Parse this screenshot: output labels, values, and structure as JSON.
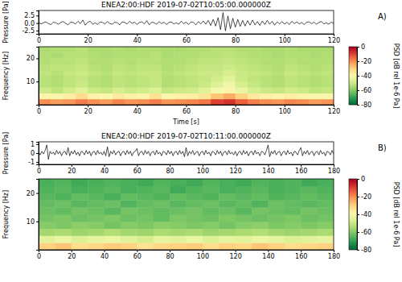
{
  "chart_data": [
    {
      "type": "line",
      "title": "ENEA2:00:HDF 2019-07-02T10:05:00.000000Z",
      "annotation": "A)",
      "y_label": "Pressure [Pa]",
      "color": "#000000",
      "grid": false,
      "x": [
        0,
        1,
        2,
        3,
        4,
        5,
        6,
        7,
        8,
        9,
        10,
        11,
        12,
        13,
        14,
        15,
        16,
        17,
        18,
        19,
        20,
        21,
        22,
        23,
        24,
        25,
        26,
        27,
        28,
        29,
        30,
        31,
        32,
        33,
        34,
        35,
        36,
        37,
        38,
        39,
        40,
        41,
        42,
        43,
        44,
        45,
        46,
        47,
        48,
        49,
        50,
        51,
        52,
        53,
        54,
        55,
        56,
        57,
        58,
        59,
        60,
        61,
        62,
        63,
        64,
        65,
        66,
        67,
        68,
        69,
        70,
        71,
        72,
        73,
        74,
        75,
        76,
        77,
        78,
        79,
        80,
        81,
        82,
        83,
        84,
        85,
        86,
        87,
        88,
        89,
        90,
        91,
        92,
        93,
        94,
        95,
        96,
        97,
        98,
        99,
        100,
        101,
        102,
        103,
        104,
        105,
        106,
        107,
        108,
        109,
        110,
        111,
        112,
        113,
        114,
        115,
        116,
        117,
        118,
        119,
        120
      ],
      "values": [
        0.2,
        -0.3,
        0.1,
        0.4,
        -0.2,
        -0.5,
        0.3,
        0.1,
        -0.4,
        0.2,
        0.5,
        -0.1,
        -0.6,
        0.3,
        0.2,
        -0.3,
        0.6,
        -0.2,
        1.0,
        -0.7,
        0.3,
        0.6,
        -0.4,
        0.1,
        -0.5,
        0.4,
        0.2,
        -0.3,
        0.5,
        -0.2,
        -0.4,
        0.3,
        0.1,
        -0.6,
        0.4,
        0.2,
        -0.3,
        0.6,
        -0.1,
        0.3,
        -0.5,
        0.2,
        0.4,
        -0.3,
        0.8,
        -0.6,
        0.3,
        0.1,
        -0.4,
        0.5,
        -0.2,
        0.3,
        -0.5,
        0.2,
        0.4,
        -0.3,
        0.1,
        -0.4,
        0.6,
        -0.2,
        0.3,
        -0.5,
        0.4,
        0.2,
        -0.6,
        0.5,
        -0.3,
        0.7,
        -0.4,
        0.9,
        -0.8,
        1.2,
        -1.0,
        1.8,
        -2.2,
        3.5,
        -2.6,
        2.4,
        -1.9,
        1.6,
        -1.4,
        1.2,
        -1.1,
        0.9,
        -1.0,
        0.8,
        -0.7,
        1.0,
        -0.6,
        0.5,
        -0.8,
        0.7,
        -0.5,
        0.9,
        -0.4,
        0.6,
        -0.7,
        0.4,
        -0.3,
        0.5,
        -0.4,
        0.3,
        -0.5,
        0.6,
        -0.2,
        0.4,
        -0.3,
        0.2,
        -0.5,
        0.3,
        0.4,
        -0.2,
        0.3,
        -0.4,
        0.2,
        0.5,
        -0.3,
        0.1,
        -0.4,
        0.3,
        -0.1
      ],
      "xlim": [
        0,
        120
      ],
      "xticks": [
        0,
        20,
        40,
        60,
        80,
        100,
        120
      ],
      "ylim": [
        -3.6,
        4.2
      ],
      "yticks": [
        -2.5,
        {
          "value": 0,
          "label": "0.0"
        },
        2.5
      ]
    },
    {
      "type": "heatmap",
      "y_label": "Frequency [Hz]",
      "x_label": "Time [s]",
      "z_label": "PSD [dB rel 1e-6 Pa]",
      "grid": false,
      "x": [
        2.5,
        7.5,
        12.5,
        17.5,
        22.5,
        27.5,
        32.5,
        37.5,
        42.5,
        47.5,
        52.5,
        57.5,
        62.5,
        67.5,
        72.5,
        77.5,
        82.5,
        87.5,
        92.5,
        97.5,
        102.5,
        107.5,
        112.5,
        117.5
      ],
      "y": [
        1.25,
        3.75,
        6.25,
        8.75,
        11.25,
        13.75,
        16.25,
        18.75,
        21.25,
        23.75
      ],
      "values": [
        [
          -20,
          -22,
          -21,
          -18,
          -20,
          -22,
          -19,
          -21,
          -20,
          -18,
          -21,
          -20,
          -19,
          -17,
          -10,
          -8,
          -14,
          -18,
          -20,
          -21,
          -19,
          -20,
          -22,
          -21
        ],
        [
          -38,
          -40,
          -36,
          -32,
          -38,
          -40,
          -35,
          -37,
          -38,
          -33,
          -39,
          -37,
          -36,
          -34,
          -28,
          -24,
          -30,
          -35,
          -37,
          -38,
          -36,
          -38,
          -40,
          -39
        ],
        [
          -50,
          -52,
          -49,
          -46,
          -50,
          -51,
          -48,
          -50,
          -49,
          -47,
          -51,
          -50,
          -49,
          -46,
          -42,
          -38,
          -44,
          -48,
          -50,
          -51,
          -49,
          -50,
          -52,
          -51
        ],
        [
          -53,
          -54,
          -52,
          -50,
          -53,
          -54,
          -52,
          -53,
          -52,
          -51,
          -54,
          -53,
          -52,
          -50,
          -47,
          -43,
          -48,
          -51,
          -53,
          -54,
          -52,
          -53,
          -54,
          -53
        ],
        [
          -53,
          -54,
          -52,
          -51,
          -53,
          -54,
          -52,
          -53,
          -52,
          -51,
          -54,
          -53,
          -52,
          -51,
          -49,
          -46,
          -50,
          -52,
          -53,
          -54,
          -52,
          -53,
          -54,
          -53
        ],
        [
          -52,
          -53,
          -51,
          -50,
          -52,
          -53,
          -51,
          -52,
          -51,
          -51,
          -53,
          -52,
          -51,
          -50,
          -50,
          -48,
          -50,
          -51,
          -52,
          -53,
          -51,
          -52,
          -53,
          -52
        ],
        [
          -53,
          -52,
          -52,
          -51,
          -53,
          -54,
          -52,
          -53,
          -52,
          -52,
          -54,
          -53,
          -52,
          -51,
          -51,
          -50,
          -51,
          -52,
          -53,
          -54,
          -52,
          -53,
          -54,
          -53
        ],
        [
          -54,
          -53,
          -53,
          -52,
          -54,
          -54,
          -53,
          -54,
          -53,
          -53,
          -54,
          -54,
          -53,
          -52,
          -52,
          -51,
          -52,
          -53,
          -54,
          -54,
          -53,
          -54,
          -54,
          -54
        ],
        [
          -54,
          -55,
          -53,
          -53,
          -54,
          -55,
          -54,
          -54,
          -54,
          -53,
          -55,
          -54,
          -54,
          -53,
          -53,
          -52,
          -53,
          -54,
          -54,
          -55,
          -54,
          -54,
          -55,
          -54
        ],
        [
          -55,
          -54,
          -54,
          -53,
          -55,
          -55,
          -54,
          -55,
          -54,
          -54,
          -55,
          -55,
          -54,
          -54,
          -53,
          -53,
          -54,
          -54,
          -55,
          -55,
          -54,
          -55,
          -55,
          -55
        ]
      ],
      "xlim": [
        0,
        120
      ],
      "xticks": [
        0,
        20,
        40,
        60,
        80,
        100,
        120
      ],
      "ylim": [
        0,
        25
      ],
      "yticks": [
        10,
        20
      ],
      "zlim": [
        -80,
        0
      ],
      "zticks": [
        0,
        -20,
        -40,
        -60,
        -80
      ]
    },
    {
      "type": "line",
      "title": "ENEA2:00:HDF 2019-07-02T10:11:00.000000Z",
      "annotation": "B)",
      "y_label": "Pressure [Pa]",
      "color": "#000000",
      "grid": false,
      "x": [
        0,
        1,
        2,
        3,
        4,
        5,
        6,
        7,
        8,
        9,
        10,
        11,
        12,
        13,
        14,
        15,
        16,
        17,
        18,
        19,
        20,
        21,
        22,
        23,
        24,
        25,
        26,
        27,
        28,
        29,
        30,
        31,
        32,
        33,
        34,
        35,
        36,
        37,
        38,
        39,
        40,
        41,
        42,
        43,
        44,
        45,
        46,
        47,
        48,
        49,
        50,
        51,
        52,
        53,
        54,
        55,
        56,
        57,
        58,
        59,
        60,
        61,
        62,
        63,
        64,
        65,
        66,
        67,
        68,
        69,
        70,
        71,
        72,
        73,
        74,
        75,
        76,
        77,
        78,
        79,
        80,
        81,
        82,
        83,
        84,
        85,
        86,
        87,
        88,
        89,
        90,
        91,
        92,
        93,
        94,
        95,
        96,
        97,
        98,
        99,
        100,
        101,
        102,
        103,
        104,
        105,
        106,
        107,
        108,
        109,
        110,
        111,
        112,
        113,
        114,
        115,
        116,
        117,
        118,
        119,
        120,
        121,
        122,
        123,
        124,
        125,
        126,
        127,
        128,
        129,
        130,
        131,
        132,
        133,
        134,
        135,
        136,
        137,
        138,
        139,
        140,
        141,
        142,
        143,
        144,
        145,
        146,
        147,
        148,
        149,
        150,
        151,
        152,
        153,
        154,
        155,
        156,
        157,
        158,
        159,
        160,
        161,
        162,
        163,
        164,
        165,
        166,
        167,
        168,
        169,
        170,
        171,
        172,
        173,
        174,
        175,
        176,
        177,
        178,
        179,
        180
      ],
      "values": [
        0.1,
        -0.2,
        0.2,
        -0.1,
        0.3,
        0.9,
        -0.7,
        0.2,
        -0.1,
        0.1,
        -0.2,
        0.3,
        -0.1,
        0.2,
        -0.3,
        0.1,
        0.2,
        -0.2,
        0.6,
        -0.3,
        0.2,
        -0.1,
        0.3,
        -0.2,
        0.1,
        -0.3,
        0.2,
        0.1,
        -0.2,
        0.3,
        -0.1,
        0.2,
        -0.3,
        0.1,
        0.2,
        -0.2,
        0.3,
        -0.1,
        0.1,
        -0.2,
        0.2,
        -0.3,
        0.7,
        -0.4,
        0.2,
        -0.1,
        0.3,
        -0.2,
        0.1,
        0.2,
        -0.3,
        0.1,
        0.2,
        -0.2,
        0.3,
        -0.1,
        0.2,
        -0.3,
        0.1,
        0.2,
        0.5,
        -0.3,
        0.1,
        0.2,
        -0.2,
        0.3,
        -0.1,
        0.2,
        -0.3,
        0.1,
        0.2,
        -0.2,
        0.3,
        -0.1,
        0.1,
        -0.3,
        0.2,
        0.1,
        -0.2,
        0.3,
        -0.1,
        0.2,
        -0.3,
        0.1,
        0.2,
        -0.2,
        0.3,
        -0.1,
        0.2,
        -0.4,
        0.6,
        -0.3,
        0.2,
        -0.1,
        0.3,
        -0.2,
        0.1,
        0.2,
        -0.3,
        0.1,
        0.2,
        -0.2,
        0.3,
        -0.1,
        0.1,
        -0.3,
        0.2,
        0.1,
        -0.2,
        0.3,
        -0.1,
        0.2,
        -0.3,
        0.1,
        0.2,
        -0.2,
        0.3,
        -0.1,
        0.1,
        -0.2,
        0.2,
        -0.3,
        0.1,
        0.2,
        -0.2,
        0.3,
        -0.1,
        0.2,
        -0.3,
        0.1,
        0.2,
        -0.2,
        0.3,
        -0.1,
        0.1,
        -0.3,
        0.2,
        0.1,
        -0.2,
        0.3,
        0.9,
        -0.4,
        0.2,
        -0.1,
        0.3,
        -0.2,
        0.1,
        0.2,
        -0.3,
        0.1,
        0.2,
        -0.2,
        0.3,
        -0.1,
        0.1,
        -0.3,
        0.2,
        0.1,
        -0.2,
        0.3,
        0.6,
        -0.3,
        0.2,
        -0.1,
        0.3,
        -0.2,
        0.1,
        0.2,
        -0.3,
        0.1,
        0.2,
        -0.2,
        0.3,
        -0.1,
        0.1,
        -0.3,
        0.2,
        0.1,
        -0.2,
        0.3,
        -0.1
      ],
      "xlim": [
        0,
        180
      ],
      "xticks": [
        0,
        20,
        40,
        60,
        80,
        100,
        120,
        140,
        160,
        180
      ],
      "ylim": [
        -1.25,
        1.25
      ],
      "yticks": [
        -1,
        0,
        1
      ]
    },
    {
      "type": "heatmap",
      "y_label": "Frequency [Hz]",
      "z_label": "PSD [dB rel 1e-6 Pa]",
      "grid": false,
      "x": [
        5,
        15,
        25,
        35,
        45,
        55,
        65,
        75,
        85,
        95,
        105,
        115,
        125,
        135,
        145,
        155,
        165,
        175
      ],
      "y": [
        1.25,
        3.75,
        6.25,
        8.75,
        11.25,
        13.75,
        16.25,
        18.75,
        21.25,
        23.75
      ],
      "values": [
        [
          -30,
          -28,
          -32,
          -31,
          -29,
          -30,
          -33,
          -31,
          -30,
          -29,
          -32,
          -30,
          -31,
          -28,
          -30,
          -32,
          -31,
          -30
        ],
        [
          -46,
          -44,
          -47,
          -45,
          -44,
          -46,
          -48,
          -45,
          -46,
          -44,
          -47,
          -45,
          -46,
          -44,
          -45,
          -47,
          -46,
          -45
        ],
        [
          -56,
          -55,
          -57,
          -56,
          -54,
          -56,
          -57,
          -55,
          -56,
          -55,
          -57,
          -56,
          -55,
          -54,
          -56,
          -57,
          -56,
          -55
        ],
        [
          -60,
          -61,
          -59,
          -60,
          -62,
          -60,
          -61,
          -59,
          -60,
          -61,
          -60,
          -62,
          -60,
          -59,
          -61,
          -60,
          -61,
          -60
        ],
        [
          -62,
          -61,
          -63,
          -62,
          -61,
          -63,
          -62,
          -64,
          -61,
          -62,
          -63,
          -61,
          -62,
          -63,
          -62,
          -61,
          -63,
          -62
        ],
        [
          -63,
          -64,
          -62,
          -63,
          -65,
          -62,
          -63,
          -64,
          -63,
          -62,
          -64,
          -63,
          -65,
          -62,
          -63,
          -64,
          -62,
          -63
        ],
        [
          -64,
          -63,
          -65,
          -64,
          -63,
          -66,
          -64,
          -63,
          -65,
          -64,
          -63,
          -65,
          -64,
          -66,
          -63,
          -64,
          -65,
          -64
        ],
        [
          -65,
          -66,
          -64,
          -65,
          -67,
          -64,
          -65,
          -66,
          -64,
          -65,
          -66,
          -64,
          -65,
          -64,
          -66,
          -65,
          -64,
          -65
        ],
        [
          -66,
          -65,
          -67,
          -66,
          -65,
          -67,
          -66,
          -65,
          -68,
          -66,
          -65,
          -67,
          -66,
          -65,
          -67,
          -66,
          -65,
          -66
        ],
        [
          -67,
          -66,
          -68,
          -67,
          -66,
          -67,
          -68,
          -66,
          -67,
          -68,
          -66,
          -67,
          -68,
          -66,
          -67,
          -66,
          -68,
          -67
        ]
      ],
      "xlim": [
        0,
        180
      ],
      "xticks": [
        0,
        20,
        40,
        60,
        80,
        100,
        120,
        140,
        160,
        180
      ],
      "ylim": [
        0,
        25
      ],
      "yticks": [
        10,
        20
      ],
      "zlim": [
        -80,
        0
      ],
      "zticks": [
        0,
        -20,
        -40,
        -60,
        -80
      ]
    }
  ]
}
